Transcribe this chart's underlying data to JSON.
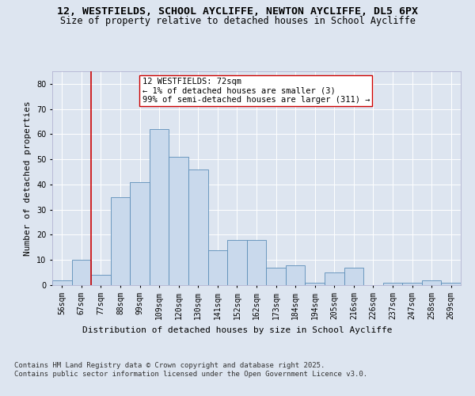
{
  "title1": "12, WESTFIELDS, SCHOOL AYCLIFFE, NEWTON AYCLIFFE, DL5 6PX",
  "title2": "Size of property relative to detached houses in School Aycliffe",
  "xlabel": "Distribution of detached houses by size in School Aycliffe",
  "ylabel": "Number of detached properties",
  "categories": [
    "56sqm",
    "67sqm",
    "77sqm",
    "88sqm",
    "99sqm",
    "109sqm",
    "120sqm",
    "130sqm",
    "141sqm",
    "152sqm",
    "162sqm",
    "173sqm",
    "184sqm",
    "194sqm",
    "205sqm",
    "216sqm",
    "226sqm",
    "237sqm",
    "247sqm",
    "258sqm",
    "269sqm"
  ],
  "values": [
    2,
    10,
    4,
    35,
    41,
    62,
    51,
    46,
    14,
    18,
    18,
    7,
    8,
    1,
    5,
    7,
    0,
    1,
    1,
    2,
    1
  ],
  "bar_color": "#c9d9ec",
  "bar_edge_color": "#5b8db8",
  "vline_x_idx": 1.5,
  "vline_color": "#cc0000",
  "annotation_text": "12 WESTFIELDS: 72sqm\n← 1% of detached houses are smaller (3)\n99% of semi-detached houses are larger (311) →",
  "ylim": [
    0,
    85
  ],
  "yticks": [
    0,
    10,
    20,
    30,
    40,
    50,
    60,
    70,
    80
  ],
  "background_color": "#dde5f0",
  "plot_background": "#dde5f0",
  "footer_text": "Contains HM Land Registry data © Crown copyright and database right 2025.\nContains public sector information licensed under the Open Government Licence v3.0.",
  "title1_fontsize": 9.5,
  "title2_fontsize": 8.5,
  "xlabel_fontsize": 8,
  "ylabel_fontsize": 8,
  "tick_fontsize": 7,
  "annotation_fontsize": 7.5,
  "footer_fontsize": 6.5
}
